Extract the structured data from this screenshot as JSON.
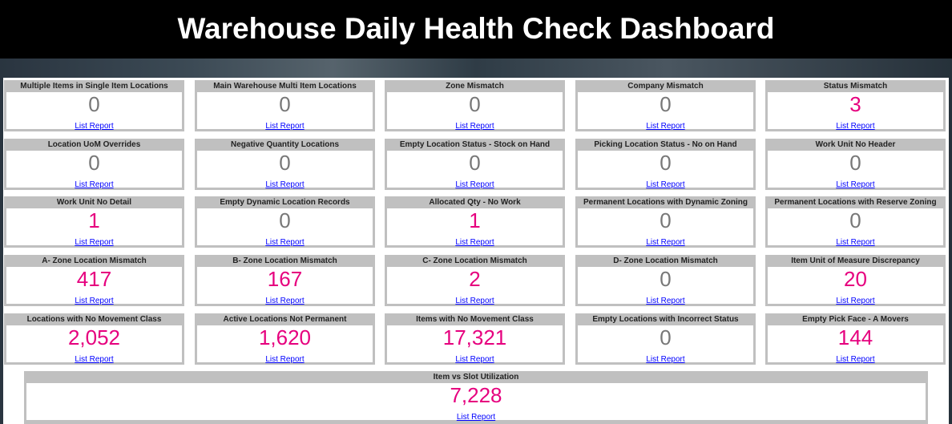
{
  "header": {
    "title": "Warehouse Daily Health Check Dashboard"
  },
  "colors": {
    "nonzero": "#e6007e",
    "zero": "#777777",
    "link": "#0000ff"
  },
  "link_label": "List Report",
  "cards": [
    {
      "title": "Multiple Items in Single Item Locations",
      "value": "0"
    },
    {
      "title": "Main Warehouse Multi Item Locations",
      "value": "0"
    },
    {
      "title": "Zone Mismatch",
      "value": "0"
    },
    {
      "title": "Company Mismatch",
      "value": "0"
    },
    {
      "title": "Status Mismatch",
      "value": "3"
    },
    {
      "title": "Location UoM Overrides",
      "value": "0"
    },
    {
      "title": "Negative Quantity Locations",
      "value": "0"
    },
    {
      "title": "Empty Location Status - Stock on Hand",
      "value": "0"
    },
    {
      "title": "Picking Location Status - No on Hand",
      "value": "0"
    },
    {
      "title": "Work Unit No Header",
      "value": "0"
    },
    {
      "title": "Work Unit No Detail",
      "value": "1"
    },
    {
      "title": "Empty Dynamic Location Records",
      "value": "0"
    },
    {
      "title": "Allocated Qty - No Work",
      "value": "1"
    },
    {
      "title": "Permanent Locations with Dynamic Zoning",
      "value": "0"
    },
    {
      "title": "Permanent Locations with Reserve Zoning",
      "value": "0"
    },
    {
      "title": "A- Zone Location Mismatch",
      "value": "417"
    },
    {
      "title": "B- Zone Location Mismatch",
      "value": "167"
    },
    {
      "title": "C- Zone Location Mismatch",
      "value": "2"
    },
    {
      "title": "D- Zone Location Mismatch",
      "value": "0"
    },
    {
      "title": "Item Unit of Measure Discrepancy",
      "value": "20"
    },
    {
      "title": "Locations with No Movement Class",
      "value": "2,052"
    },
    {
      "title": "Active Locations Not Permanent",
      "value": "1,620"
    },
    {
      "title": "Items with No Movement Class",
      "value": "17,321"
    },
    {
      "title": "Empty Locations with Incorrect Status",
      "value": "0"
    },
    {
      "title": "Empty Pick Face - A Movers",
      "value": "144"
    },
    {
      "title": "Item vs Slot Utilization",
      "value": "7,228"
    }
  ]
}
